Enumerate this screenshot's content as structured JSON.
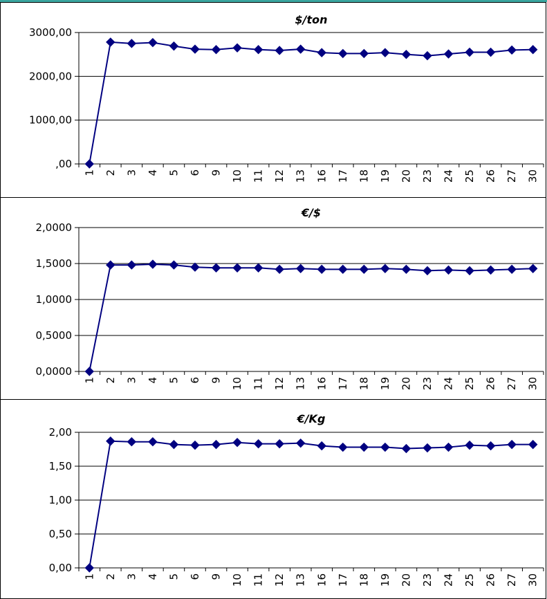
{
  "chart_data": [
    {
      "type": "line",
      "title": "$/ton",
      "categories": [
        "1",
        "2",
        "3",
        "4",
        "5",
        "6",
        "9",
        "10",
        "11",
        "12",
        "13",
        "16",
        "17",
        "18",
        "19",
        "20",
        "23",
        "24",
        "25",
        "26",
        "27",
        "30"
      ],
      "values": [
        0,
        2780,
        2750,
        2770,
        2690,
        2620,
        2610,
        2650,
        2610,
        2590,
        2620,
        2540,
        2520,
        2520,
        2540,
        2500,
        2470,
        2510,
        2550,
        2550,
        2600,
        2610
      ],
      "ylim": [
        0,
        3000
      ],
      "yticks": [
        ",00",
        "1000,00",
        "2000,00",
        "3000,00"
      ],
      "grid": true,
      "marker": "diamond",
      "color": "#000080"
    },
    {
      "type": "line",
      "title": "€/$",
      "categories": [
        "1",
        "2",
        "3",
        "4",
        "5",
        "6",
        "9",
        "10",
        "11",
        "12",
        "13",
        "16",
        "17",
        "18",
        "19",
        "20",
        "23",
        "24",
        "25",
        "26",
        "27",
        "30"
      ],
      "values": [
        0,
        1.48,
        1.48,
        1.49,
        1.48,
        1.45,
        1.44,
        1.44,
        1.44,
        1.42,
        1.43,
        1.42,
        1.42,
        1.42,
        1.43,
        1.42,
        1.4,
        1.41,
        1.4,
        1.41,
        1.42,
        1.43
      ],
      "ylim": [
        0,
        2
      ],
      "yticks": [
        "0,0000",
        "0,5000",
        "1,0000",
        "1,5000",
        "2,0000"
      ],
      "grid": true,
      "marker": "diamond",
      "color": "#000080"
    },
    {
      "type": "line",
      "title": "€/Kg",
      "categories": [
        "1",
        "2",
        "3",
        "4",
        "5",
        "6",
        "9",
        "10",
        "11",
        "12",
        "13",
        "16",
        "17",
        "18",
        "19",
        "20",
        "23",
        "24",
        "25",
        "26",
        "27",
        "30"
      ],
      "values": [
        0,
        1.87,
        1.86,
        1.86,
        1.82,
        1.81,
        1.82,
        1.85,
        1.83,
        1.83,
        1.84,
        1.8,
        1.78,
        1.78,
        1.78,
        1.76,
        1.77,
        1.78,
        1.81,
        1.8,
        1.82,
        1.82
      ],
      "ylim": [
        0,
        2
      ],
      "yticks": [
        "0,00",
        "0,50",
        "1,00",
        "1,50",
        "2,00"
      ],
      "grid": true,
      "marker": "diamond",
      "color": "#000080"
    }
  ]
}
